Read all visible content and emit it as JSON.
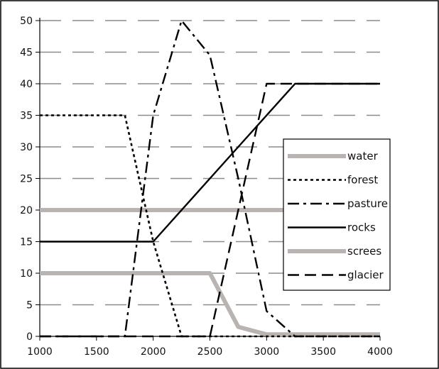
{
  "chart_data": {
    "type": "line",
    "title": "",
    "xlabel": "",
    "ylabel": "",
    "xlim": [
      1000,
      4000
    ],
    "ylim": [
      0,
      50
    ],
    "xticks": [
      1000,
      1500,
      2000,
      2500,
      3000,
      3500,
      4000
    ],
    "yticks": [
      0,
      5,
      10,
      15,
      20,
      25,
      30,
      35,
      40,
      45,
      50
    ],
    "grid": "horizontal",
    "legend": "right",
    "series": [
      {
        "name": "water",
        "style": "solid-thick",
        "color": "#b9b4b1",
        "x": [
          1000,
          4000
        ],
        "y": [
          20,
          20
        ]
      },
      {
        "name": "forest",
        "style": "dotted",
        "color": "#000000",
        "x": [
          1000,
          1750,
          2000,
          2250,
          4000
        ],
        "y": [
          35,
          35,
          15,
          0,
          0
        ]
      },
      {
        "name": "pasture",
        "style": "dashdot",
        "color": "#000000",
        "x": [
          1000,
          1750,
          2000,
          2250,
          2500,
          2750,
          3000,
          3250,
          4000
        ],
        "y": [
          0,
          0,
          35,
          50,
          44.5,
          25,
          4,
          0,
          0
        ]
      },
      {
        "name": "rocks",
        "style": "solid",
        "color": "#000000",
        "x": [
          1000,
          2000,
          2750,
          3250,
          4000
        ],
        "y": [
          15,
          15,
          30,
          40,
          40
        ]
      },
      {
        "name": "screes",
        "style": "solid-thick",
        "color": "#b9b4b1",
        "x": [
          1000,
          2500,
          2750,
          3000,
          4000
        ],
        "y": [
          10,
          10,
          1.5,
          0.3,
          0.3
        ]
      },
      {
        "name": "glacier",
        "style": "dashed",
        "color": "#000000",
        "x": [
          1000,
          2500,
          3000,
          4000
        ],
        "y": [
          0,
          0,
          40,
          40
        ]
      }
    ]
  }
}
